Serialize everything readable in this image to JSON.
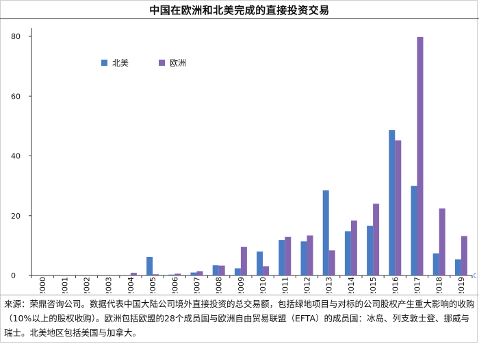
{
  "chart_data": {
    "type": "bar",
    "title": "中国在欧洲和北美完成的直接投资交易",
    "categories": [
      "2000",
      "2001",
      "2002",
      "2003",
      "2004",
      "2005",
      "2006",
      "2007",
      "2008",
      "2009",
      "2010",
      "2011",
      "2012",
      "2013",
      "2014",
      "2015",
      "2016",
      "2017",
      "2018",
      "2019"
    ],
    "series": [
      {
        "name": "北美",
        "color": "#4a7cc4",
        "values": [
          0,
          0,
          0,
          0,
          0,
          6.2,
          0.3,
          1.0,
          3.4,
          2.4,
          8.0,
          11.9,
          11.4,
          28.5,
          14.8,
          16.6,
          48.6,
          30.0,
          7.4,
          5.4
        ]
      },
      {
        "name": "欧洲",
        "color": "#8466b0",
        "values": [
          0,
          0,
          0,
          0,
          0.9,
          0.4,
          0.6,
          1.4,
          3.3,
          9.6,
          3.1,
          12.9,
          13.4,
          8.4,
          18.4,
          24.0,
          45.2,
          79.8,
          22.4,
          13.2
        ]
      }
    ],
    "yticks": [
      0,
      20,
      40,
      60,
      80
    ],
    "ylim": [
      0,
      80
    ],
    "grid": false,
    "legend": "top-left inside"
  },
  "source_text": "来源：荣鼎咨询公司。数据代表中国大陆公司境外直接投资的总交易额，包括绿地项目与对标的公司股权产生重大影响的收购（10%以上的股权收购）。欧洲包括欧盟的28个成员国与欧洲自由贸易联盟（EFTA）的成员国：冰岛、列支敦士登、挪威与瑞士。北美地区包括美国与加拿大。"
}
